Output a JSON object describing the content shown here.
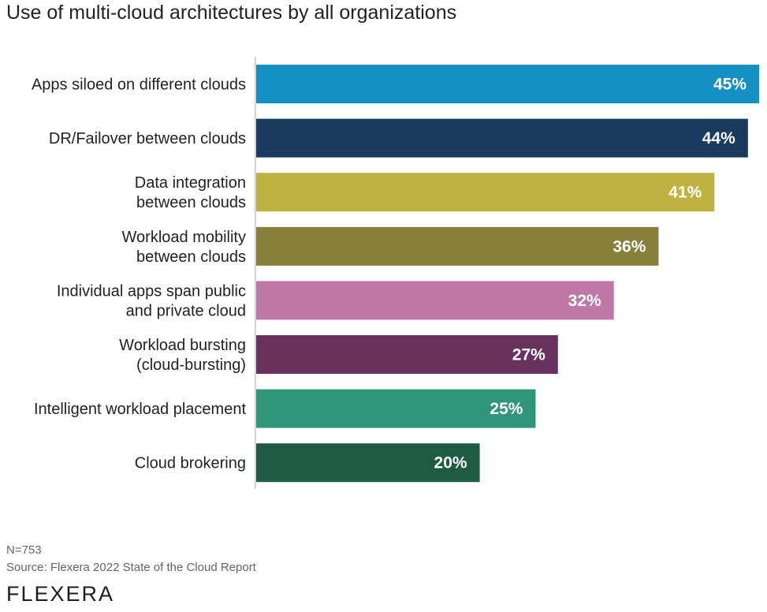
{
  "chart_data": {
    "type": "bar",
    "orientation": "horizontal",
    "title": "Use of multi-cloud architectures by all organizations",
    "categories": [
      [
        "Apps siloed on different clouds"
      ],
      [
        "DR/Failover between clouds"
      ],
      [
        "Data integration",
        "between clouds"
      ],
      [
        "Workload mobility",
        "between clouds"
      ],
      [
        "Individual apps span public",
        "and private cloud"
      ],
      [
        "Workload bursting",
        "(cloud-bursting)"
      ],
      [
        "Intelligent workload placement"
      ],
      [
        "Cloud brokering"
      ]
    ],
    "values": [
      45,
      44,
      41,
      36,
      32,
      27,
      25,
      20
    ],
    "value_labels": [
      "45%",
      "44%",
      "41%",
      "36%",
      "32%",
      "27%",
      "25%",
      "20%"
    ],
    "colors": [
      "#1590c3",
      "#1a3a5f",
      "#c0b241",
      "#877f3a",
      "#bd78a5",
      "#6a315e",
      "#319579",
      "#1f5b44"
    ],
    "xlim": [
      0,
      45
    ],
    "grid": false,
    "legend": "none"
  },
  "footnotes": {
    "n": "N=753",
    "source": "Source: Flexera 2022 State of the Cloud Report"
  },
  "logo_text": "FLEXERA"
}
